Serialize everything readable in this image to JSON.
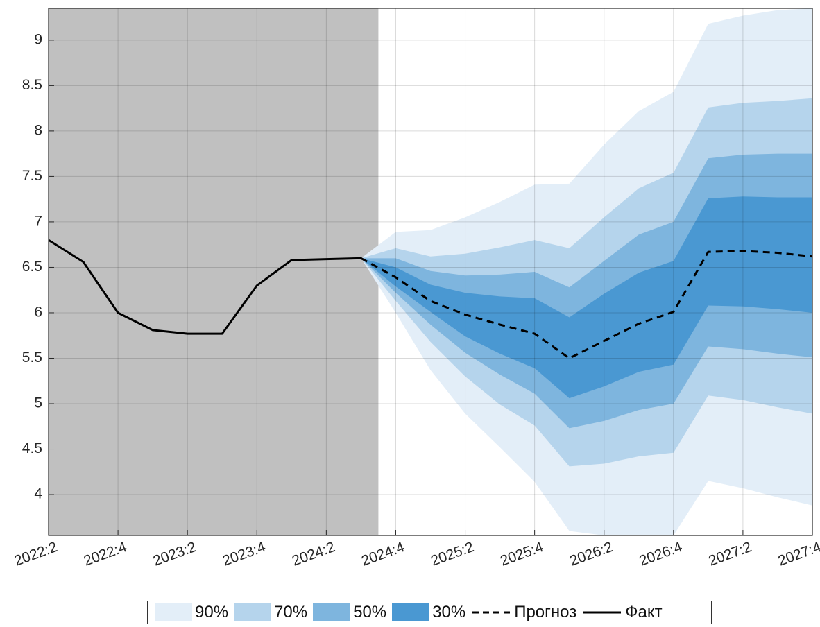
{
  "chart_data": {
    "type": "area",
    "title": "",
    "xlabel": "",
    "ylabel": "",
    "x_ticks": [
      "2022:2",
      "2022:4",
      "2023:2",
      "2023:4",
      "2024:2",
      "2024:4",
      "2025:2",
      "2025:4",
      "2026:2",
      "2026:4",
      "2027:2",
      "2027:4"
    ],
    "x_categories": [
      "2022:2",
      "2022:3",
      "2022:4",
      "2023:1",
      "2023:2",
      "2023:3",
      "2023:4",
      "2024:1",
      "2024:2",
      "2024:3",
      "2024:4",
      "2025:1",
      "2025:2",
      "2025:3",
      "2025:4",
      "2026:1",
      "2026:2",
      "2026:3",
      "2026:4",
      "2027:1",
      "2027:2",
      "2027:3",
      "2027:4"
    ],
    "y_ticks": [
      "4",
      "4.5",
      "5",
      "5.5",
      "6",
      "6.5",
      "7",
      "7.5",
      "8",
      "8.5",
      "9"
    ],
    "ylim": [
      3.55,
      9.35
    ],
    "grid": true,
    "shaded_history_until": "2024:3.5",
    "legend_position": "bottom",
    "actual": {
      "name": "Факт",
      "x": [
        "2022:2",
        "2022:3",
        "2022:4",
        "2023:1",
        "2023:2",
        "2023:3",
        "2023:4",
        "2024:1",
        "2024:2",
        "2024:3"
      ],
      "values": [
        6.8,
        6.56,
        6.0,
        5.81,
        5.77,
        5.77,
        6.3,
        6.58,
        6.59,
        6.6
      ]
    },
    "forecast": {
      "name": "Прогноз",
      "x": [
        "2024:3",
        "2024:4",
        "2025:1",
        "2025:2",
        "2025:3",
        "2025:4",
        "2026:1",
        "2026:2",
        "2026:3",
        "2026:4",
        "2027:1",
        "2027:2",
        "2027:3",
        "2027:4"
      ],
      "values": [
        6.6,
        6.39,
        6.13,
        5.98,
        5.87,
        5.77,
        5.5,
        5.69,
        5.88,
        6.01,
        6.67,
        6.68,
        6.66,
        6.62
      ]
    },
    "bands": [
      {
        "name": "90%",
        "color": "#e3eef8",
        "upper": [
          6.6,
          6.89,
          6.91,
          7.05,
          7.22,
          7.41,
          7.42,
          7.85,
          8.22,
          8.43,
          9.18,
          9.27,
          9.33,
          9.36
        ],
        "lower": [
          6.6,
          6.0,
          5.37,
          4.89,
          4.52,
          4.14,
          3.6,
          3.55,
          3.55,
          3.55,
          4.15,
          4.07,
          3.97,
          3.88
        ]
      },
      {
        "name": "70%",
        "color": "#b5d4ec",
        "upper": [
          6.6,
          6.71,
          6.62,
          6.65,
          6.72,
          6.8,
          6.71,
          7.05,
          7.37,
          7.54,
          8.26,
          8.31,
          8.33,
          8.36
        ],
        "lower": [
          6.6,
          6.13,
          5.68,
          5.3,
          4.99,
          4.76,
          4.31,
          4.34,
          4.42,
          4.46,
          5.09,
          5.04,
          4.96,
          4.89
        ]
      },
      {
        "name": "50%",
        "color": "#7eb5de",
        "upper": [
          6.6,
          6.6,
          6.46,
          6.41,
          6.42,
          6.45,
          6.28,
          6.57,
          6.86,
          7.0,
          7.7,
          7.74,
          7.75,
          7.75
        ],
        "lower": [
          6.6,
          6.22,
          5.87,
          5.56,
          5.32,
          5.11,
          4.73,
          4.81,
          4.93,
          5.0,
          5.63,
          5.6,
          5.55,
          5.51
        ]
      },
      {
        "name": "30%",
        "color": "#4a98d2",
        "upper": [
          6.6,
          6.5,
          6.31,
          6.22,
          6.18,
          6.16,
          5.95,
          6.21,
          6.44,
          6.57,
          7.26,
          7.28,
          7.27,
          7.27
        ],
        "lower": [
          6.6,
          6.29,
          6.01,
          5.74,
          5.55,
          5.39,
          5.06,
          5.19,
          5.35,
          5.43,
          6.08,
          6.07,
          6.04,
          6.0
        ]
      }
    ]
  },
  "legend": {
    "items": [
      {
        "label": "90%",
        "color": "#e3eef8"
      },
      {
        "label": "70%",
        "color": "#b5d4ec"
      },
      {
        "label": "50%",
        "color": "#7eb5de"
      },
      {
        "label": "30%",
        "color": "#4a98d2"
      }
    ],
    "forecast_label": "Прогноз",
    "actual_label": "Факт"
  }
}
